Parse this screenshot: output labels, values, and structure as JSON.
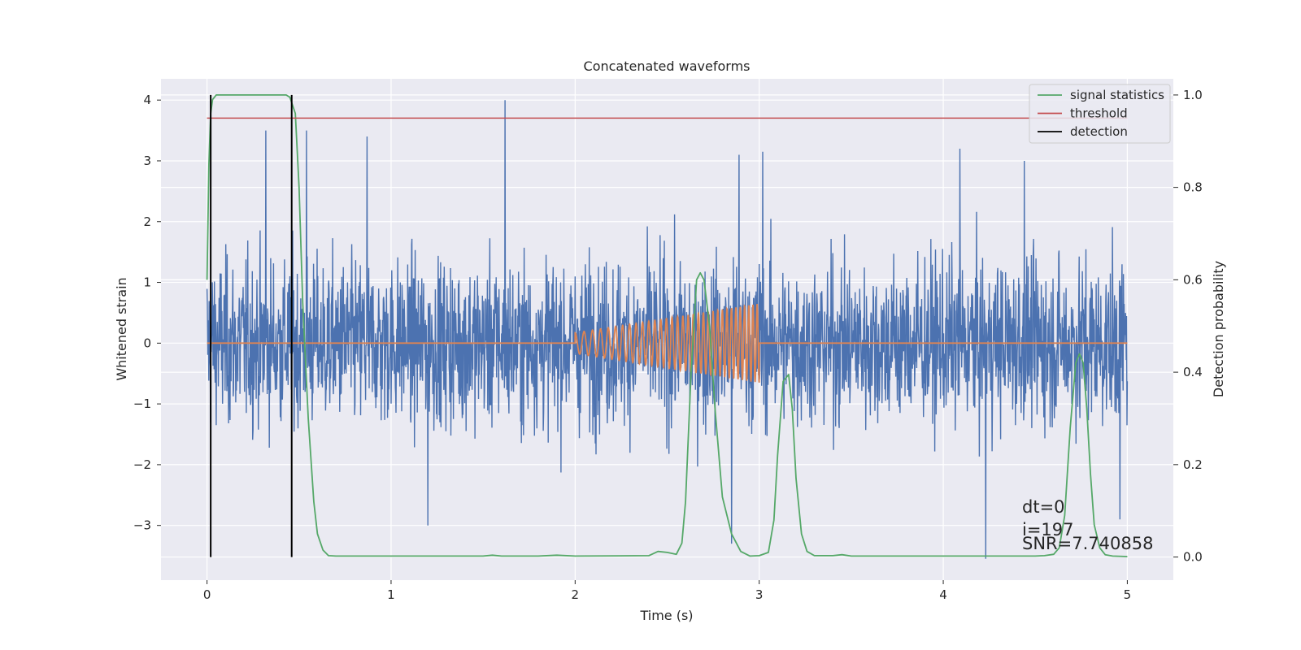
{
  "chart_data": {
    "type": "line",
    "title": "Concatenated waveforms",
    "xlabel": "Time (s)",
    "ylabel": "Whitened strain",
    "y2label": "Detection probability",
    "xlim": [
      -0.25,
      5.25
    ],
    "ylim": [
      -3.9,
      4.35
    ],
    "y2lim": [
      -0.05,
      1.035
    ],
    "xticks": [
      0,
      1,
      2,
      3,
      4,
      5
    ],
    "xtick_labels": [
      "0",
      "1",
      "2",
      "3",
      "4",
      "5"
    ],
    "yticks": [
      4,
      3,
      2,
      1,
      0,
      -1,
      -2,
      -3
    ],
    "ytick_labels": [
      "4",
      "3",
      "2",
      "1",
      "0",
      "−1",
      "−2",
      "−3"
    ],
    "y2ticks": [
      1.0,
      0.8,
      0.6,
      0.4,
      0.2,
      0.0
    ],
    "y2tick_labels": [
      "1.0",
      "0.8",
      "0.6",
      "0.4",
      "0.2",
      "0.0"
    ],
    "grid": true,
    "legend_position": "top-right",
    "colors": {
      "plot_bg": "#EAEAF2",
      "grid": "#FFFFFF",
      "strain": "#4C72B0",
      "injection": "#DD8452",
      "signal": "#55A868",
      "threshold": "#C44E52",
      "detection": "#000000"
    },
    "legend": [
      {
        "label": "signal statistics",
        "color": "#55A868"
      },
      {
        "label": "threshold",
        "color": "#C44E52"
      },
      {
        "label": "detection",
        "color": "#000000"
      }
    ],
    "strain_envelope": {
      "t_range": [
        0,
        5
      ],
      "typical_amplitude": [
        -2.0,
        2.3
      ],
      "spikes": [
        {
          "t": 0.32,
          "y": 3.5
        },
        {
          "t": 0.54,
          "y": 3.5
        },
        {
          "t": 0.87,
          "y": 3.4
        },
        {
          "t": 1.62,
          "y": 4.0
        },
        {
          "t": 2.89,
          "y": 3.1
        },
        {
          "t": 3.02,
          "y": 3.15
        },
        {
          "t": 4.09,
          "y": 3.2
        },
        {
          "t": 4.44,
          "y": 3.0
        },
        {
          "t": 1.2,
          "y": -3.0
        },
        {
          "t": 2.85,
          "y": -3.3
        },
        {
          "t": 4.23,
          "y": -3.55
        },
        {
          "t": 4.96,
          "y": -2.9
        }
      ]
    },
    "injection": {
      "t_start": 2.0,
      "t_end": 3.0,
      "amp_start": 0.17,
      "amp_end": 0.65,
      "f_start": 20,
      "f_end": 45
    },
    "signal_statistics": {
      "t": [
        0,
        0.01,
        0.02,
        0.03,
        0.05,
        0.08,
        0.12,
        0.2,
        0.3,
        0.4,
        0.43,
        0.45,
        0.48,
        0.5,
        0.52,
        0.55,
        0.58,
        0.6,
        0.63,
        0.66,
        0.7,
        1.0,
        1.5,
        1.55,
        1.6,
        1.8,
        1.9,
        2.0,
        2.4,
        2.45,
        2.5,
        2.55,
        2.58,
        2.6,
        2.63,
        2.66,
        2.68,
        2.7,
        2.73,
        2.76,
        2.8,
        2.85,
        2.9,
        2.95,
        3.0,
        3.05,
        3.08,
        3.1,
        3.13,
        3.16,
        3.18,
        3.2,
        3.23,
        3.26,
        3.3,
        3.4,
        3.45,
        3.5,
        4.0,
        4.5,
        4.55,
        4.6,
        4.63,
        4.66,
        4.69,
        4.72,
        4.74,
        4.76,
        4.78,
        4.8,
        4.82,
        4.85,
        4.88,
        4.92,
        5.0
      ],
      "p": [
        0.6,
        0.85,
        0.96,
        0.99,
        1.0,
        1.0,
        1.0,
        1.0,
        1.0,
        1.0,
        1.0,
        0.995,
        0.96,
        0.8,
        0.55,
        0.3,
        0.12,
        0.05,
        0.015,
        0.003,
        0.002,
        0.002,
        0.002,
        0.004,
        0.002,
        0.002,
        0.004,
        0.002,
        0.003,
        0.012,
        0.01,
        0.006,
        0.03,
        0.12,
        0.4,
        0.6,
        0.615,
        0.6,
        0.5,
        0.32,
        0.13,
        0.05,
        0.012,
        0.002,
        0.003,
        0.01,
        0.08,
        0.22,
        0.38,
        0.395,
        0.32,
        0.17,
        0.05,
        0.012,
        0.003,
        0.003,
        0.005,
        0.002,
        0.002,
        0.002,
        0.003,
        0.006,
        0.02,
        0.09,
        0.28,
        0.42,
        0.44,
        0.42,
        0.32,
        0.18,
        0.07,
        0.02,
        0.005,
        0.002,
        0.001
      ]
    },
    "threshold": {
      "t_range": [
        0,
        5
      ],
      "value": 0.95
    },
    "detections": [
      0.02,
      0.46
    ],
    "annotation": [
      "dt=0",
      "i=197",
      "SNR=7.740858"
    ]
  }
}
